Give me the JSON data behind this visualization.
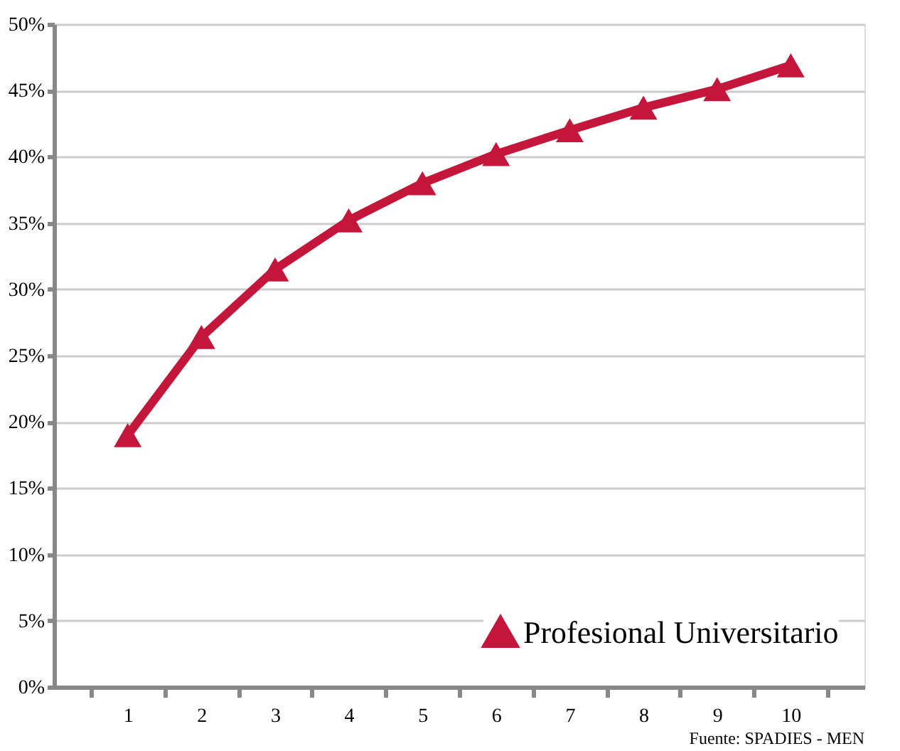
{
  "chart_data": {
    "type": "line",
    "categories": [
      "1",
      "2",
      "3",
      "4",
      "5",
      "6",
      "7",
      "8",
      "9",
      "10"
    ],
    "series": [
      {
        "name": "Profesional Universitario",
        "color": "#c4153a",
        "values": [
          19.0,
          26.4,
          31.5,
          35.2,
          38.0,
          40.2,
          42.0,
          43.7,
          45.1,
          46.9
        ]
      }
    ],
    "ylim": [
      0,
      50
    ],
    "yticks": [
      {
        "value": 0,
        "label": "0%"
      },
      {
        "value": 5,
        "label": "5%"
      },
      {
        "value": 10,
        "label": "10%"
      },
      {
        "value": 15,
        "label": "15%"
      },
      {
        "value": 20,
        "label": "20%"
      },
      {
        "value": 25,
        "label": "25%"
      },
      {
        "value": 30,
        "label": "30%"
      },
      {
        "value": 35,
        "label": "35%"
      },
      {
        "value": 40,
        "label": "40%"
      },
      {
        "value": 45,
        "label": "45%"
      },
      {
        "value": 50,
        "label": "50%"
      }
    ],
    "grid": "y",
    "legend": "bottom right",
    "marker": "triangle",
    "line_style": "solid",
    "annotations": [
      "Fuente: SPADIES - MEN"
    ]
  }
}
